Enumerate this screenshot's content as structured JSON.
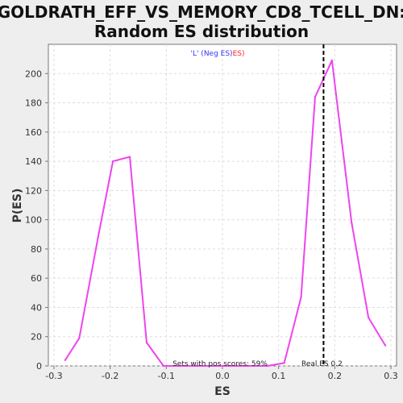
{
  "chart_data": {
    "type": "line",
    "title_line1": "GOLDRATH_EFF_VS_MEMORY_CD8_TCELL_DN:",
    "title_line2": "Random ES distribution",
    "xlabel": "ES",
    "ylabel": "P(ES)",
    "xlim": [
      -0.31,
      0.31
    ],
    "ylim": [
      0,
      220
    ],
    "xticks": [
      -0.3,
      -0.2,
      -0.1,
      0.0,
      0.1,
      0.2,
      0.3
    ],
    "xtick_labels": [
      "-0.3",
      "-0.2",
      "-0.1",
      "0.0",
      "0.1",
      "0.2",
      "0.3"
    ],
    "yticks": [
      0,
      20,
      40,
      60,
      80,
      100,
      120,
      140,
      160,
      180,
      200
    ],
    "ytick_labels": [
      "0",
      "20",
      "40",
      "60",
      "80",
      "100",
      "120",
      "140",
      "160",
      "180",
      "200"
    ],
    "grid": true,
    "legend": {
      "position": "top-center",
      "part1": "'L' (Neg ES)",
      "part2": "ES)",
      "color1": "#3333ff",
      "color2": "#ff2222"
    },
    "series": [
      {
        "color": "#ee44ee",
        "points": [
          [
            -0.28,
            4
          ],
          [
            -0.255,
            19
          ],
          [
            -0.22,
            91
          ],
          [
            -0.195,
            140
          ],
          [
            -0.165,
            143
          ],
          [
            -0.135,
            16
          ],
          [
            -0.105,
            0
          ],
          [
            -0.075,
            0
          ],
          [
            -0.045,
            0
          ],
          [
            -0.015,
            0
          ],
          [
            0.015,
            0
          ],
          [
            0.045,
            0
          ],
          [
            0.08,
            0
          ],
          [
            0.11,
            2
          ],
          [
            0.14,
            47
          ],
          [
            0.165,
            184
          ],
          [
            0.195,
            209
          ],
          [
            0.23,
            98
          ],
          [
            0.26,
            33
          ],
          [
            0.29,
            14
          ]
        ]
      }
    ],
    "real_es": {
      "value": 0.18,
      "label": "Real ES 0.2",
      "color": "#000000"
    },
    "annotation": "Sets with pos scores: 59%"
  },
  "colors": {
    "background": "#eeeeee",
    "plot_background": "#ffffff",
    "grid": "#dddddd",
    "axis": "#777777"
  }
}
